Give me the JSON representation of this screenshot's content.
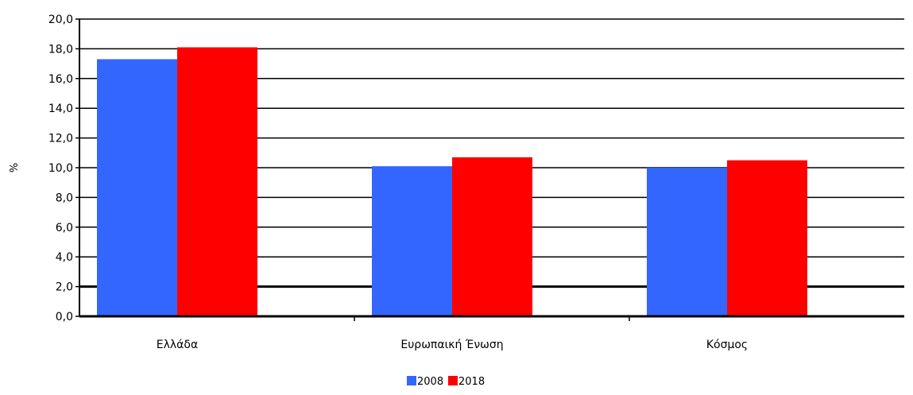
{
  "chart_data": {
    "type": "bar",
    "title": "",
    "xlabel": "",
    "ylabel": "%",
    "ylim": [
      0,
      20
    ],
    "ytick_step": 2,
    "ytick_labels": [
      "0,0",
      "2,0",
      "4,0",
      "6,0",
      "8,0",
      "10,0",
      "12,0",
      "14,0",
      "16,0",
      "18,0",
      "20,0"
    ],
    "categories": [
      "Ελλάδα",
      "Ευρωπαική Ένωση",
      "Κόσμος"
    ],
    "series": [
      {
        "name": "2008",
        "color": "#3366ff",
        "values": [
          17.3,
          10.1,
          10.0
        ]
      },
      {
        "name": "2018",
        "color": "#ff0000",
        "values": [
          18.1,
          10.7,
          10.5
        ]
      }
    ],
    "grid": true,
    "legend": "bottom-center"
  }
}
